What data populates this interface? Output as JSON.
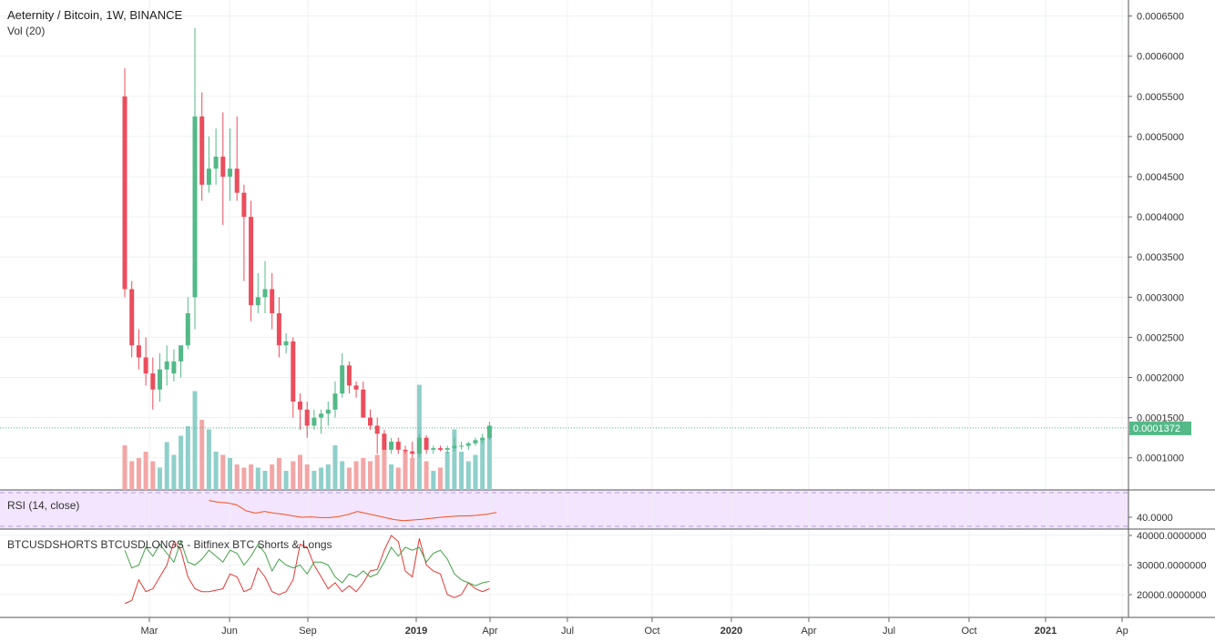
{
  "header": {
    "title": "Aeternity / Bitcoin, 1W, BINANCE",
    "volume_label": "Vol (20)"
  },
  "rsi_panel": {
    "label": "RSI (14, close)",
    "axis_label": "40.0000"
  },
  "shorts_longs_panel": {
    "label": "BTCUSDSHORTS BTCUSDLONGS - Bitfinex BTC Shorts & Longs",
    "axis_labels": [
      "40000.0000000",
      "30000.0000000",
      "20000.0000000"
    ]
  },
  "colors": {
    "up": "#53b987",
    "down": "#eb4d5c",
    "vol_up": "#8fcfca",
    "vol_down": "#f3a6a6",
    "rsi_line": "#f4511e",
    "rsi_bg": "#f3e5fd",
    "shorts": "#e53935",
    "longs": "#43a047",
    "grid": "#eef0f3",
    "last_price_bg": "#53b987"
  },
  "chart_data": {
    "type": "candlestick",
    "price_axis": {
      "ticks": [
        "0.0006500",
        "0.0006000",
        "0.0005500",
        "0.0005000",
        "0.0004500",
        "0.0004000",
        "0.0003500",
        "0.0003000",
        "0.0002500",
        "0.0002000",
        "0.0001500",
        "0.0001000"
      ],
      "range": [
        6e-05,
        0.00067
      ]
    },
    "last_price": "0.0001372",
    "x_labels": [
      "Mar",
      "Jun",
      "Sep",
      "2019",
      "Apr",
      "Jul",
      "Oct",
      "2020",
      "Apr",
      "Jul",
      "Oct",
      "2021",
      "Ap"
    ],
    "candles": [
      [
        0.00055,
        0.000585,
        0.0003,
        0.00031,
        0.7
      ],
      [
        0.00031,
        0.00032,
        0.000225,
        0.00024,
        0.45
      ],
      [
        0.00024,
        0.00026,
        0.00021,
        0.000225,
        0.5
      ],
      [
        0.000225,
        0.00025,
        0.00019,
        0.000205,
        0.6
      ],
      [
        0.000205,
        0.000225,
        0.00016,
        0.000185,
        0.45
      ],
      [
        0.000185,
        0.00023,
        0.00017,
        0.00021,
        0.35
      ],
      [
        0.00021,
        0.00024,
        0.00019,
        0.00022,
        0.75
      ],
      [
        0.000205,
        0.000235,
        0.000195,
        0.00022,
        0.55
      ],
      [
        0.00022,
        0.00024,
        0.0002,
        0.00024,
        0.85
      ],
      [
        0.00024,
        0.0003,
        0.000235,
        0.00028,
        1.0
      ],
      [
        0.0003,
        0.000635,
        0.00026,
        0.000525,
        1.55
      ],
      [
        0.000525,
        0.000555,
        0.00042,
        0.00044,
        1.1
      ],
      [
        0.00044,
        0.0005,
        0.00043,
        0.00046,
        0.95
      ],
      [
        0.00046,
        0.00051,
        0.00044,
        0.000475,
        0.6
      ],
      [
        0.000475,
        0.00053,
        0.00039,
        0.00045,
        0.55
      ],
      [
        0.00045,
        0.00051,
        0.00042,
        0.00046,
        0.5
      ],
      [
        0.00046,
        0.000525,
        0.00042,
        0.00043,
        0.4
      ],
      [
        0.00043,
        0.00044,
        0.00032,
        0.0004,
        0.35
      ],
      [
        0.0004,
        0.00042,
        0.00027,
        0.00029,
        0.4
      ],
      [
        0.00029,
        0.00033,
        0.00028,
        0.0003,
        0.35
      ],
      [
        0.0003,
        0.000345,
        0.00028,
        0.00031,
        0.3
      ],
      [
        0.00031,
        0.00033,
        0.00026,
        0.00028,
        0.4
      ],
      [
        0.00028,
        0.0003,
        0.000225,
        0.00024,
        0.5
      ],
      [
        0.00024,
        0.000255,
        0.00023,
        0.000245,
        0.3
      ],
      [
        0.000245,
        0.00025,
        0.00015,
        0.00017,
        0.45
      ],
      [
        0.00017,
        0.00018,
        0.000135,
        0.00016,
        0.55
      ],
      [
        0.00016,
        0.00017,
        0.000125,
        0.00014,
        0.4
      ],
      [
        0.00014,
        0.00016,
        0.000135,
        0.00015,
        0.3
      ],
      [
        0.00015,
        0.00016,
        0.00013,
        0.000155,
        0.35
      ],
      [
        0.000155,
        0.00017,
        0.00014,
        0.00016,
        0.4
      ],
      [
        0.00016,
        0.000195,
        0.00015,
        0.00018,
        0.7
      ],
      [
        0.00018,
        0.00023,
        0.000175,
        0.000215,
        0.45
      ],
      [
        0.000215,
        0.00022,
        0.00018,
        0.00019,
        0.35
      ],
      [
        0.00019,
        0.000195,
        0.000175,
        0.000185,
        0.45
      ],
      [
        0.000185,
        0.000195,
        0.00015,
        0.00015,
        0.5
      ],
      [
        0.00015,
        0.00016,
        0.000135,
        0.00014,
        0.45
      ],
      [
        0.00014,
        0.00015,
        0.000105,
        0.00013,
        0.55
      ],
      [
        0.00013,
        0.000135,
        0.00011,
        0.00011,
        0.7
      ],
      [
        0.00011,
        0.000125,
        0.000105,
        0.00012,
        0.4
      ],
      [
        0.00012,
        0.000125,
        0.000105,
        0.00011,
        0.35
      ],
      [
        0.00011,
        0.000115,
        0.000105,
        0.000108,
        0.6
      ],
      [
        0.000108,
        0.00012,
        0.0001,
        0.000105,
        0.5
      ],
      [
        0.000105,
        0.00013,
        0.0001,
        0.000125,
        1.65
      ],
      [
        0.000125,
        0.000128,
        0.000105,
        0.00011,
        0.45
      ],
      [
        0.00011,
        0.000115,
        0.000105,
        0.000112,
        0.3
      ],
      [
        0.000112,
        0.000115,
        0.000108,
        0.00011,
        0.35
      ],
      [
        0.00011,
        0.000115,
        0.000105,
        0.000112,
        0.6
      ],
      [
        0.000112,
        0.000125,
        0.000108,
        0.000115,
        0.95
      ],
      [
        0.000115,
        0.00012,
        0.00011,
        0.000115,
        0.6
      ],
      [
        0.000115,
        0.00012,
        0.00011,
        0.000118,
        0.45
      ],
      [
        0.000118,
        0.000125,
        0.000115,
        0.000122,
        0.55
      ],
      [
        0.000122,
        0.00013,
        0.000118,
        0.000125,
        0.8
      ],
      [
        0.000125,
        0.000145,
        0.000122,
        0.00014,
        0.85
      ]
    ],
    "rsi": [
      44.5,
      44,
      43.8,
      43.2,
      41.5,
      40.8,
      41.3,
      40.8,
      40.5,
      40.0,
      39.6,
      39.7,
      39.5,
      39.5,
      39.8,
      40.4,
      41.3,
      40.7,
      40.1,
      39.5,
      38.9,
      38.6,
      38.8,
      39.0,
      39.3,
      39.6,
      39.8,
      40.0,
      40.0,
      40.2,
      40.5,
      41.0
    ],
    "shorts": [
      17000,
      18000,
      25000,
      21000,
      22000,
      26000,
      30000,
      38000,
      35000,
      26000,
      22000,
      21000,
      21000,
      21500,
      22000,
      27000,
      26000,
      21000,
      22000,
      29000,
      26000,
      21000,
      20000,
      21000,
      25000,
      37000,
      36000,
      30000,
      26000,
      22000,
      24000,
      21000,
      23000,
      21000,
      24000,
      28000,
      28500,
      35000,
      40000,
      38000,
      28000,
      26000,
      39000,
      30000,
      28000,
      27000,
      20000,
      19000,
      20000,
      24000,
      22000,
      21000,
      22000
    ],
    "longs": [
      35000,
      29000,
      30000,
      36000,
      33000,
      37000,
      34000,
      31000,
      38000,
      31000,
      30000,
      32000,
      35000,
      33000,
      31000,
      35000,
      34000,
      30000,
      33000,
      37000,
      34000,
      28000,
      32000,
      30000,
      29000,
      30000,
      27000,
      31000,
      31000,
      30000,
      26000,
      24000,
      27000,
      26000,
      28000,
      26000,
      27000,
      31000,
      36000,
      33000,
      36000,
      35000,
      36000,
      31000,
      34000,
      35000,
      32000,
      27000,
      25000,
      24000,
      23000,
      24000,
      24500
    ]
  }
}
